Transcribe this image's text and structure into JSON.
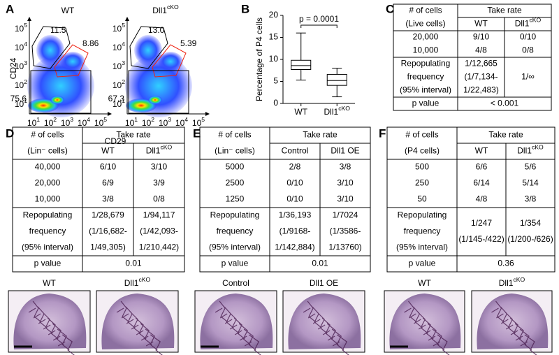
{
  "panel_a": {
    "label": "A",
    "xlabel": "CD29",
    "ylabel": "CD24",
    "plots": [
      {
        "title": {
          "text": "WT"
        },
        "gates": [
          "11.5",
          "8.86",
          "75.6"
        ],
        "yticks": [
          {
            "text": "10",
            "sup": "1"
          },
          {
            "text": "10",
            "sup": "2"
          },
          {
            "text": "10",
            "sup": "3"
          },
          {
            "text": "10",
            "sup": "4"
          },
          {
            "text": "10",
            "sup": "5"
          }
        ],
        "xticks": [
          {
            "text": "10",
            "sup": "1"
          },
          {
            "text": "10",
            "sup": "2"
          },
          {
            "text": "10",
            "sup": "3"
          },
          {
            "text": "10",
            "sup": "4"
          },
          {
            "text": "10",
            "sup": "5"
          }
        ]
      },
      {
        "title": {
          "text": "Dll1",
          "sup": "cKO"
        },
        "gates": [
          "13.0",
          "5.39",
          "67.3"
        ],
        "yticks": [
          {
            "text": "10",
            "sup": "1"
          },
          {
            "text": "10",
            "sup": "2"
          },
          {
            "text": "10",
            "sup": "3"
          },
          {
            "text": "10",
            "sup": "4"
          },
          {
            "text": "10",
            "sup": "5"
          }
        ],
        "xticks": [
          {
            "text": "10",
            "sup": "1"
          },
          {
            "text": "10",
            "sup": "2"
          },
          {
            "text": "10",
            "sup": "3"
          },
          {
            "text": "10",
            "sup": "4"
          },
          {
            "text": "10",
            "sup": "5"
          }
        ]
      }
    ]
  },
  "panel_b": {
    "label": "B",
    "ylabel": "Percentage of P4 cells",
    "annotation": "p = 0.0001",
    "ylim": [
      0,
      20
    ],
    "yticks": [
      0,
      5,
      10,
      15,
      20
    ],
    "categories": [
      {
        "text": "WT"
      },
      {
        "text": "Dll1",
        "sup": "cKO"
      }
    ],
    "boxes": [
      {
        "min": 5.3,
        "q1": 7.7,
        "median": 8.6,
        "q3": 9.8,
        "max": 16
      },
      {
        "min": 1.5,
        "q1": 4.1,
        "median": 5.2,
        "q3": 6.6,
        "max": 8
      }
    ]
  },
  "panel_c": {
    "label": "C",
    "head": [
      "# of cells",
      "(Live cells)"
    ],
    "take": "Take rate",
    "groups": [
      {
        "text": "WT"
      },
      {
        "text": "Dll1",
        "sup": "cKO"
      }
    ],
    "rows": [
      [
        "20,000",
        "9/10",
        "0/10"
      ],
      [
        "10,000",
        "4/8",
        "0/8"
      ]
    ],
    "freq": {
      "label": [
        "Repopulating",
        "frequency",
        "(95% interval)"
      ],
      "cols": [
        [
          "1/12,665",
          "(1/7,134-",
          "1/22,483)"
        ],
        [
          "1/∞"
        ]
      ]
    },
    "p": {
      "label": "p value",
      "value": "< 0.001"
    }
  },
  "panel_d": {
    "label": "D",
    "head": [
      "# of cells",
      "(Lin⁻ cells)"
    ],
    "take": "Take rate",
    "groups": [
      {
        "text": "WT"
      },
      {
        "text": "Dll1",
        "sup": "cKO"
      }
    ],
    "rows": [
      [
        "40,000",
        "6/10",
        "3/10"
      ],
      [
        "20,000",
        "6/9",
        "3/9"
      ],
      [
        "10,000",
        "3/8",
        "0/8"
      ]
    ],
    "freq": {
      "label": [
        "Repopulating",
        "frequency",
        "(95% interval)"
      ],
      "cols": [
        [
          "1/28,679",
          "(1/16,682-",
          "1/49,305)"
        ],
        [
          "1/94,117",
          "(1/42,093-",
          "1/210,442)"
        ]
      ]
    },
    "p": {
      "label": "p value",
      "value": "0.01"
    },
    "images": [
      {
        "text": "WT"
      },
      {
        "text": "Dll1",
        "sup": "cKO"
      }
    ]
  },
  "panel_e": {
    "label": "E",
    "head": [
      "# of cells",
      "(Lin⁻ cells)"
    ],
    "take": "Take rate",
    "groups": [
      {
        "text": "Control"
      },
      {
        "text": "Dll1 OE"
      }
    ],
    "rows": [
      [
        "5000",
        "2/8",
        "3/8"
      ],
      [
        "2500",
        "0/10",
        "3/10"
      ],
      [
        "1250",
        "0/10",
        "3/10"
      ]
    ],
    "freq": {
      "label": [
        "Repopulating",
        "frequency",
        "(95% interval)"
      ],
      "cols": [
        [
          "1/36,193",
          "(1/9168-",
          "1/142,884)"
        ],
        [
          "1/7024",
          "(1/3586-",
          "1/13760)"
        ]
      ]
    },
    "p": {
      "label": "p value",
      "value": "0.01"
    },
    "images": [
      {
        "text": "Control"
      },
      {
        "text": "Dll1 OE"
      }
    ]
  },
  "panel_f": {
    "label": "F",
    "head": [
      "# of cells",
      "(P4 cells)"
    ],
    "take": "Take rate",
    "groups": [
      {
        "text": "WT"
      },
      {
        "text": "Dll1",
        "sup": "cKO"
      }
    ],
    "rows": [
      [
        "500",
        "6/6",
        "5/6"
      ],
      [
        "250",
        "6/14",
        "5/14"
      ],
      [
        "50",
        "4/8",
        "3/8"
      ]
    ],
    "freq": {
      "label": [
        "Repopulating",
        "frequency",
        "(95% interval)"
      ],
      "cols": [
        [
          "1/247",
          "(1/145-/422)"
        ],
        [
          "1/354",
          "(1/200-/626)"
        ]
      ]
    },
    "p": {
      "label": "p value",
      "value": "0.36"
    },
    "images": [
      {
        "text": "WT"
      },
      {
        "text": "Dll1",
        "sup": "cKO"
      }
    ]
  }
}
